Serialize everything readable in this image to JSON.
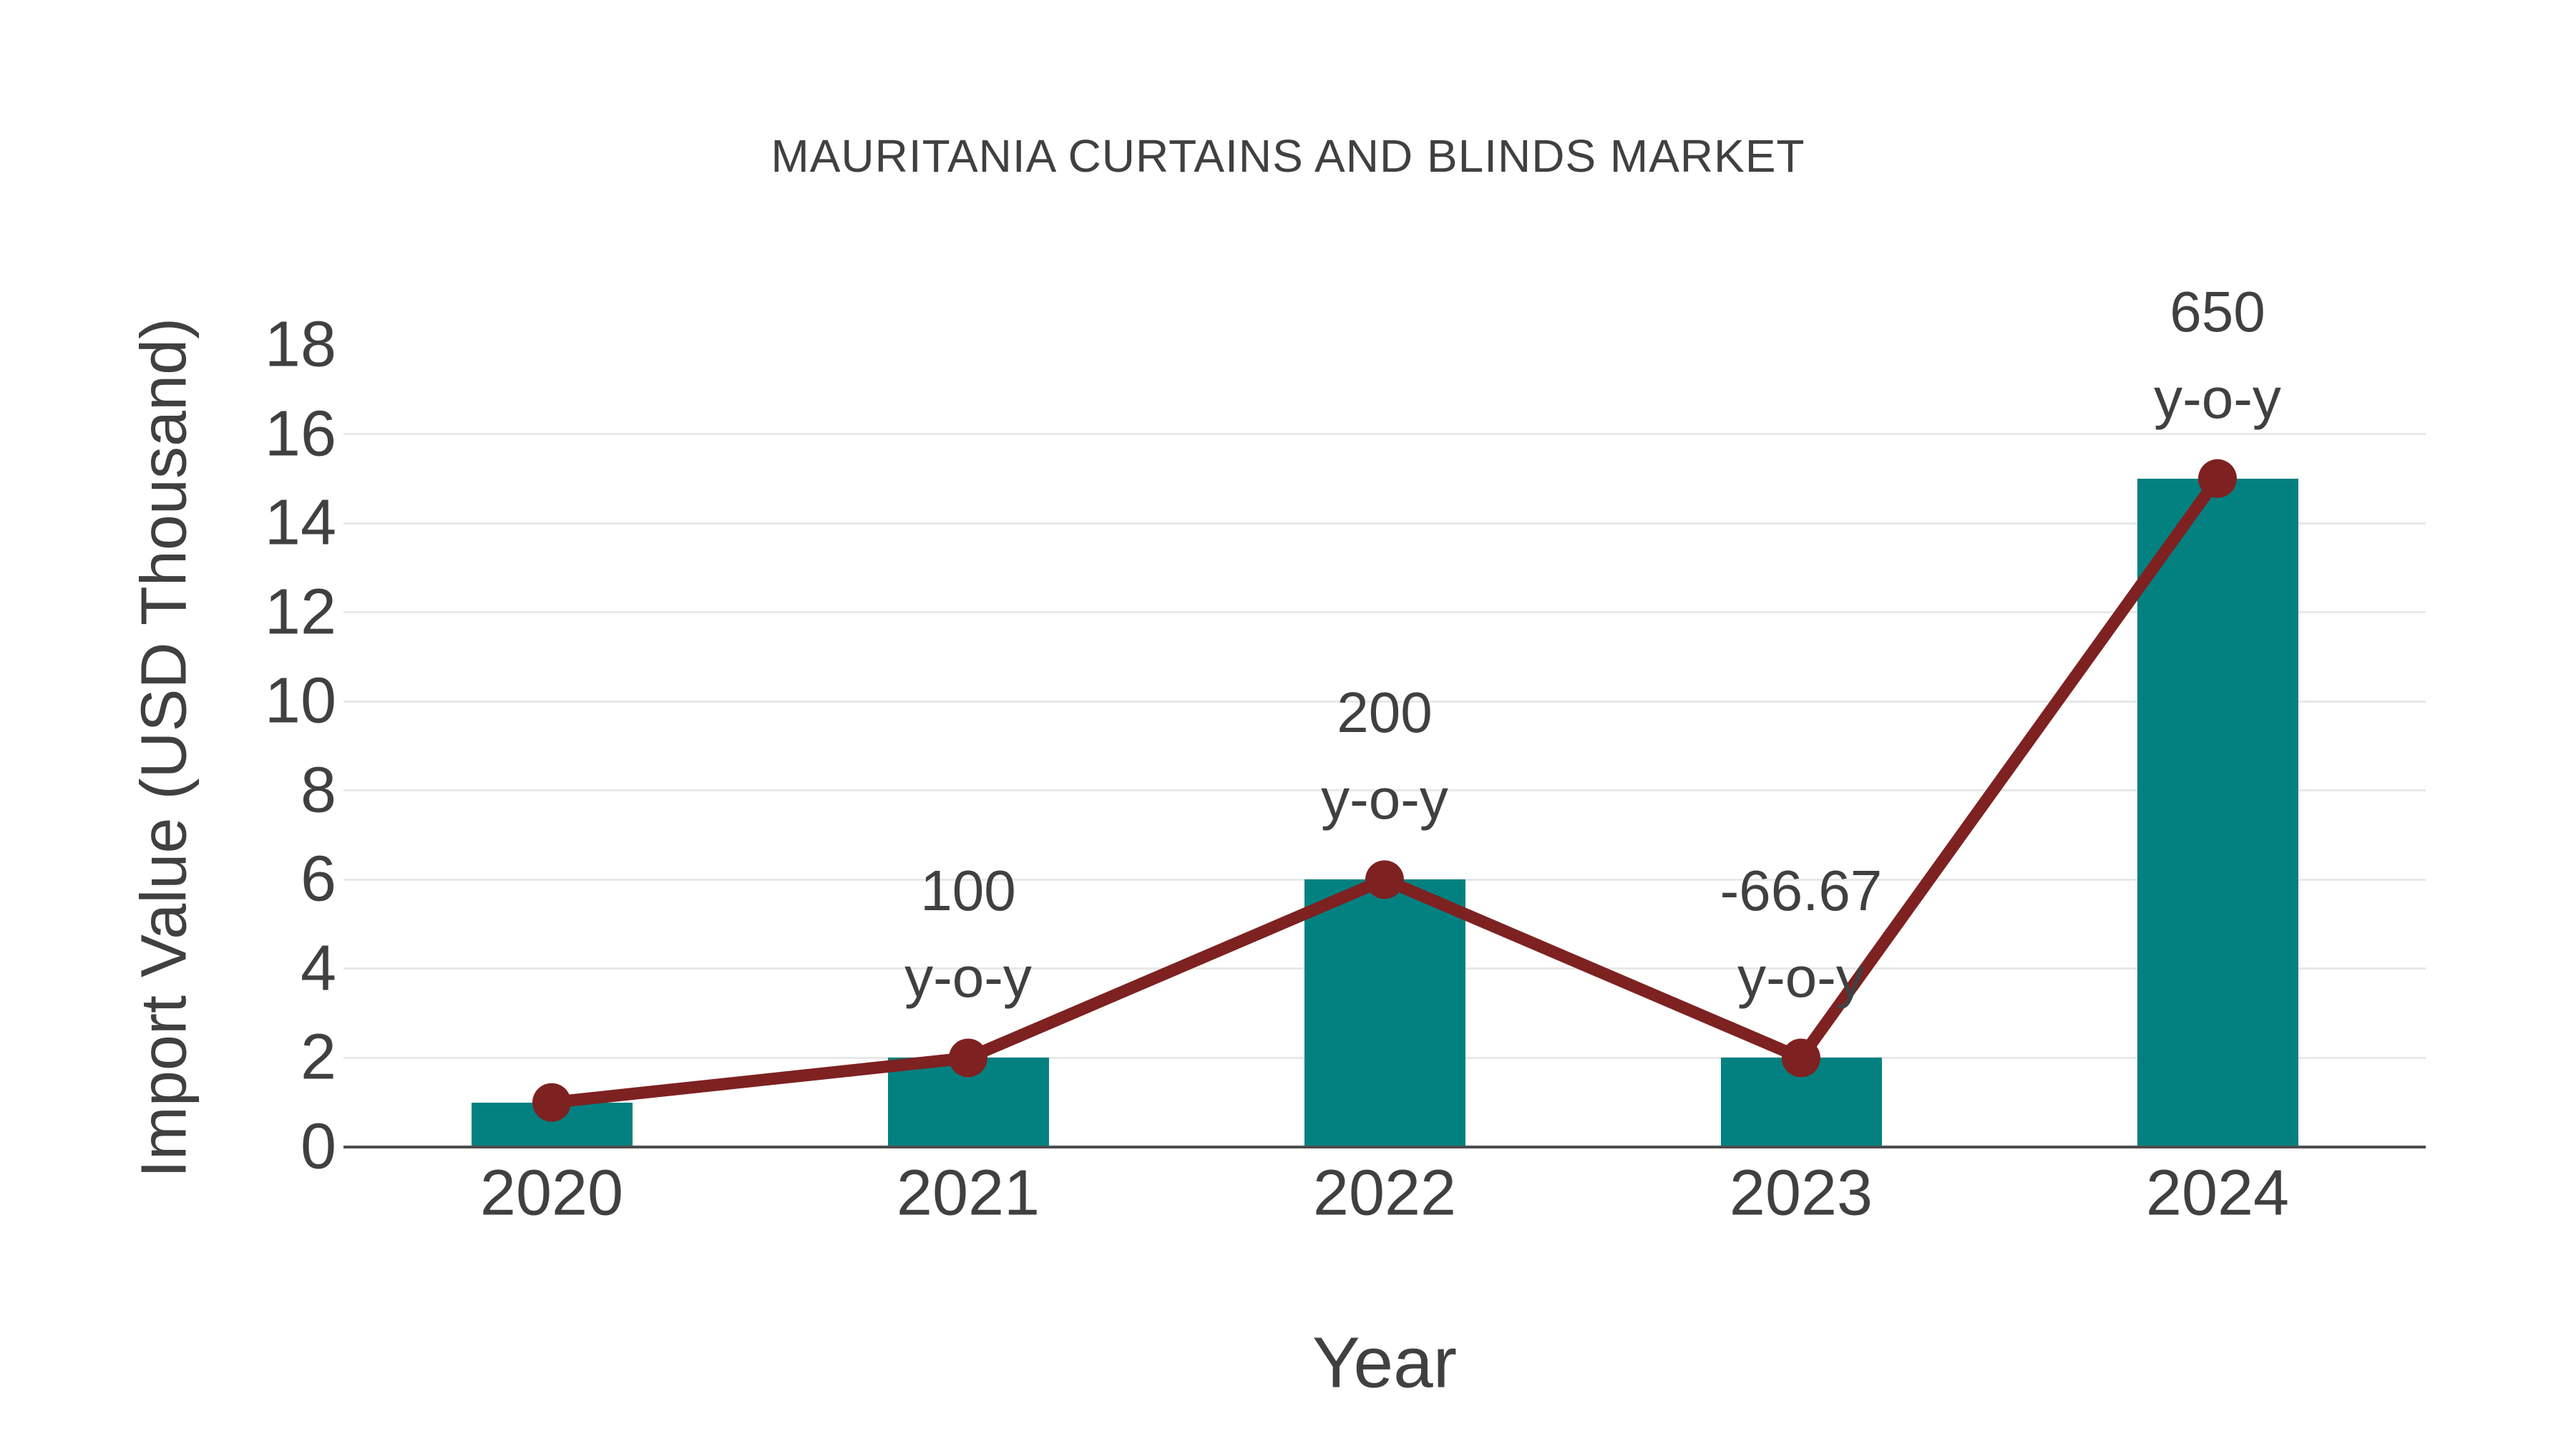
{
  "chart_data": {
    "type": "bar+line",
    "title": "MAURITANIA CURTAINS AND BLINDS MARKET",
    "xlabel": "Year",
    "ylabel": "Import Value (USD Thousand)",
    "categories": [
      "2020",
      "2021",
      "2022",
      "2023",
      "2024"
    ],
    "series": [
      {
        "name": "import-value-bars",
        "type": "bar",
        "values": [
          1,
          2,
          6,
          2,
          15
        ]
      },
      {
        "name": "import-value-line",
        "type": "line",
        "values": [
          1,
          2,
          6,
          2,
          15
        ]
      }
    ],
    "ylim": [
      0,
      18
    ],
    "ytick_labels": [
      "0",
      "2",
      "4",
      "6",
      "8",
      "10",
      "12",
      "14",
      "16",
      "18"
    ],
    "ytick_values": [
      0,
      2,
      4,
      6,
      8,
      10,
      12,
      14,
      16,
      18
    ],
    "gridline_values": [
      2,
      4,
      6,
      8,
      10,
      12,
      14,
      16
    ],
    "grid": "horizontal-only",
    "legend": "none",
    "annotations": [
      {
        "category": "2021",
        "value_label": "100",
        "suffix_label": "y-o-y"
      },
      {
        "category": "2022",
        "value_label": "200",
        "suffix_label": "y-o-y"
      },
      {
        "category": "2023",
        "value_label": "-66.67",
        "suffix_label": "y-o-y"
      },
      {
        "category": "2024",
        "value_label": "650",
        "suffix_label": "y-o-y"
      }
    ],
    "colors": {
      "bar": "#028180",
      "line": "#7E2121",
      "marker": "#7E2121",
      "text": "#404040",
      "gridline": "#e8e8e8",
      "axis_line": "#4d4d4d",
      "background": "#ffffff"
    }
  }
}
